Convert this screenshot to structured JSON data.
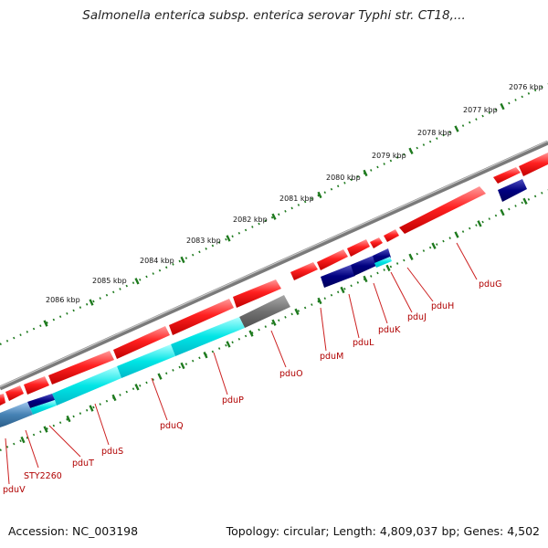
{
  "title": "Salmonella enterica subsp. enterica serovar Typhi str. CT18,...",
  "footer": {
    "accession": "Accession: NC_003198",
    "topology": "Topology: circular; Length: 4,809,037 bp; Genes: 4,502"
  },
  "colors": {
    "backbone": "#808080",
    "forward_gene": "#ff2020",
    "reverse_gene": "#00e5e5",
    "reverse_dark": "#000080",
    "reverse_steel": "#4682b4",
    "pseudo_gene": "#707070",
    "tick": "#1e7a1e",
    "gene_label": "#b00000"
  },
  "ticks": [
    "2076 kbp",
    "2077 kbp",
    "2078 kbp",
    "2079 kbp",
    "2080 kbp",
    "2081 kbp",
    "2082 kbp",
    "2083 kbp",
    "2084 kbp",
    "2085 kbp",
    "2086 kbp"
  ],
  "genes": [
    {
      "name": "pduG"
    },
    {
      "name": "pduH"
    },
    {
      "name": "pduJ"
    },
    {
      "name": "pduK"
    },
    {
      "name": "pduL"
    },
    {
      "name": "pduM"
    },
    {
      "name": "pduO"
    },
    {
      "name": "pduP"
    },
    {
      "name": "pduQ"
    },
    {
      "name": "pduS"
    },
    {
      "name": "pduT"
    },
    {
      "name": "STY2260"
    },
    {
      "name": "pduV"
    }
  ]
}
